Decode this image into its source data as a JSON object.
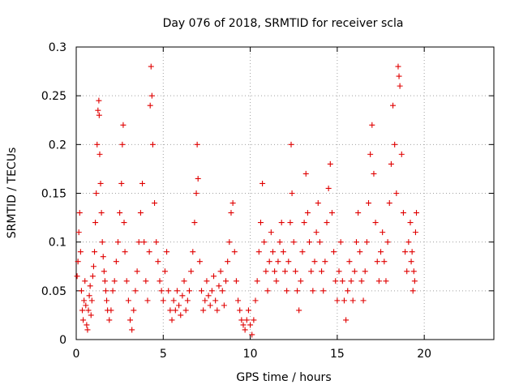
{
  "chart_data": {
    "type": "scatter",
    "title": "Day 076 of 2018, SRMTID for receiver scla",
    "xlabel": "GPS time / hours",
    "ylabel": "SRMTID / TECUs",
    "xlim": [
      0,
      24
    ],
    "ylim": [
      0,
      0.3
    ],
    "xticks": [
      0,
      5,
      10,
      15,
      20
    ],
    "xtick_labels": [
      "0",
      "5",
      "10",
      "15",
      "20"
    ],
    "yticks": [
      0,
      0.05,
      0.1,
      0.15,
      0.2,
      0.25,
      0.3
    ],
    "ytick_labels": [
      "0",
      "0.05",
      "0.1",
      "0.15",
      "0.2",
      "0.25",
      "0.3"
    ],
    "grid": true,
    "marker": "plus",
    "color": "#e00000",
    "series": [
      {
        "name": "SRMTID",
        "points": [
          [
            0.05,
            0.065
          ],
          [
            0.1,
            0.08
          ],
          [
            0.15,
            0.11
          ],
          [
            0.2,
            0.13
          ],
          [
            0.25,
            0.09
          ],
          [
            0.3,
            0.05
          ],
          [
            0.35,
            0.03
          ],
          [
            0.4,
            0.02
          ],
          [
            0.45,
            0.04
          ],
          [
            0.5,
            0.06
          ],
          [
            0.55,
            0.035
          ],
          [
            0.6,
            0.015
          ],
          [
            0.65,
            0.01
          ],
          [
            0.7,
            0.03
          ],
          [
            0.75,
            0.045
          ],
          [
            0.8,
            0.055
          ],
          [
            0.85,
            0.025
          ],
          [
            0.9,
            0.04
          ],
          [
            0.95,
            0.065
          ],
          [
            1.0,
            0.075
          ],
          [
            1.05,
            0.09
          ],
          [
            1.1,
            0.12
          ],
          [
            1.15,
            0.15
          ],
          [
            1.2,
            0.2
          ],
          [
            1.25,
            0.235
          ],
          [
            1.3,
            0.245
          ],
          [
            1.32,
            0.23
          ],
          [
            1.35,
            0.19
          ],
          [
            1.4,
            0.16
          ],
          [
            1.45,
            0.13
          ],
          [
            1.5,
            0.1
          ],
          [
            1.55,
            0.085
          ],
          [
            1.6,
            0.07
          ],
          [
            1.65,
            0.06
          ],
          [
            1.7,
            0.05
          ],
          [
            1.75,
            0.04
          ],
          [
            1.8,
            0.03
          ],
          [
            1.9,
            0.02
          ],
          [
            2.0,
            0.03
          ],
          [
            2.1,
            0.05
          ],
          [
            2.2,
            0.06
          ],
          [
            2.3,
            0.08
          ],
          [
            2.4,
            0.1
          ],
          [
            2.5,
            0.13
          ],
          [
            2.6,
            0.16
          ],
          [
            2.65,
            0.2
          ],
          [
            2.7,
            0.22
          ],
          [
            2.75,
            0.12
          ],
          [
            2.8,
            0.09
          ],
          [
            2.9,
            0.06
          ],
          [
            3.0,
            0.04
          ],
          [
            3.1,
            0.02
          ],
          [
            3.2,
            0.01
          ],
          [
            3.3,
            0.03
          ],
          [
            3.4,
            0.05
          ],
          [
            3.5,
            0.07
          ],
          [
            3.6,
            0.1
          ],
          [
            3.7,
            0.13
          ],
          [
            3.8,
            0.16
          ],
          [
            3.9,
            0.1
          ],
          [
            4.0,
            0.06
          ],
          [
            4.1,
            0.04
          ],
          [
            4.2,
            0.09
          ],
          [
            4.25,
            0.24
          ],
          [
            4.3,
            0.28
          ],
          [
            4.35,
            0.25
          ],
          [
            4.4,
            0.2
          ],
          [
            4.5,
            0.14
          ],
          [
            4.6,
            0.1
          ],
          [
            4.7,
            0.08
          ],
          [
            4.8,
            0.06
          ],
          [
            4.9,
            0.05
          ],
          [
            5.0,
            0.04
          ],
          [
            5.1,
            0.07
          ],
          [
            5.2,
            0.09
          ],
          [
            5.3,
            0.05
          ],
          [
            5.4,
            0.03
          ],
          [
            5.5,
            0.02
          ],
          [
            5.6,
            0.04
          ],
          [
            5.7,
            0.03
          ],
          [
            5.8,
            0.05
          ],
          [
            5.9,
            0.035
          ],
          [
            6.0,
            0.025
          ],
          [
            6.1,
            0.045
          ],
          [
            6.2,
            0.06
          ],
          [
            6.3,
            0.03
          ],
          [
            6.4,
            0.04
          ],
          [
            6.5,
            0.05
          ],
          [
            6.6,
            0.07
          ],
          [
            6.7,
            0.09
          ],
          [
            6.8,
            0.12
          ],
          [
            6.9,
            0.15
          ],
          [
            6.95,
            0.2
          ],
          [
            7.0,
            0.165
          ],
          [
            7.1,
            0.08
          ],
          [
            7.2,
            0.05
          ],
          [
            7.3,
            0.03
          ],
          [
            7.4,
            0.04
          ],
          [
            7.5,
            0.06
          ],
          [
            7.6,
            0.045
          ],
          [
            7.7,
            0.035
          ],
          [
            7.8,
            0.05
          ],
          [
            7.9,
            0.065
          ],
          [
            8.0,
            0.04
          ],
          [
            8.1,
            0.03
          ],
          [
            8.2,
            0.055
          ],
          [
            8.3,
            0.07
          ],
          [
            8.4,
            0.05
          ],
          [
            8.5,
            0.035
          ],
          [
            8.6,
            0.06
          ],
          [
            8.7,
            0.08
          ],
          [
            8.8,
            0.1
          ],
          [
            8.9,
            0.13
          ],
          [
            9.0,
            0.14
          ],
          [
            9.1,
            0.09
          ],
          [
            9.2,
            0.06
          ],
          [
            9.3,
            0.04
          ],
          [
            9.4,
            0.03
          ],
          [
            9.5,
            0.02
          ],
          [
            9.6,
            0.015
          ],
          [
            9.7,
            0.01
          ],
          [
            9.8,
            0.02
          ],
          [
            9.9,
            0.03
          ],
          [
            10.0,
            0.015
          ],
          [
            10.1,
            0.005
          ],
          [
            10.2,
            0.02
          ],
          [
            10.3,
            0.04
          ],
          [
            10.4,
            0.06
          ],
          [
            10.5,
            0.09
          ],
          [
            10.6,
            0.12
          ],
          [
            10.7,
            0.16
          ],
          [
            10.8,
            0.1
          ],
          [
            10.9,
            0.07
          ],
          [
            11.0,
            0.05
          ],
          [
            11.1,
            0.08
          ],
          [
            11.2,
            0.11
          ],
          [
            11.3,
            0.09
          ],
          [
            11.4,
            0.07
          ],
          [
            11.5,
            0.06
          ],
          [
            11.6,
            0.08
          ],
          [
            11.7,
            0.1
          ],
          [
            11.8,
            0.12
          ],
          [
            11.9,
            0.09
          ],
          [
            12.0,
            0.07
          ],
          [
            12.1,
            0.05
          ],
          [
            12.2,
            0.08
          ],
          [
            12.3,
            0.12
          ],
          [
            12.35,
            0.2
          ],
          [
            12.4,
            0.15
          ],
          [
            12.5,
            0.1
          ],
          [
            12.6,
            0.07
          ],
          [
            12.7,
            0.05
          ],
          [
            12.8,
            0.03
          ],
          [
            12.9,
            0.06
          ],
          [
            13.0,
            0.09
          ],
          [
            13.1,
            0.12
          ],
          [
            13.2,
            0.17
          ],
          [
            13.3,
            0.13
          ],
          [
            13.4,
            0.1
          ],
          [
            13.5,
            0.07
          ],
          [
            13.6,
            0.05
          ],
          [
            13.7,
            0.08
          ],
          [
            13.8,
            0.11
          ],
          [
            13.9,
            0.14
          ],
          [
            14.0,
            0.1
          ],
          [
            14.1,
            0.07
          ],
          [
            14.2,
            0.05
          ],
          [
            14.3,
            0.08
          ],
          [
            14.4,
            0.12
          ],
          [
            14.5,
            0.155
          ],
          [
            14.6,
            0.18
          ],
          [
            14.7,
            0.13
          ],
          [
            14.8,
            0.09
          ],
          [
            14.9,
            0.06
          ],
          [
            15.0,
            0.04
          ],
          [
            15.1,
            0.07
          ],
          [
            15.2,
            0.1
          ],
          [
            15.3,
            0.06
          ],
          [
            15.4,
            0.04
          ],
          [
            15.5,
            0.02
          ],
          [
            15.6,
            0.05
          ],
          [
            15.7,
            0.08
          ],
          [
            15.8,
            0.06
          ],
          [
            15.9,
            0.04
          ],
          [
            16.0,
            0.07
          ],
          [
            16.1,
            0.1
          ],
          [
            16.2,
            0.13
          ],
          [
            16.3,
            0.09
          ],
          [
            16.4,
            0.06
          ],
          [
            16.5,
            0.04
          ],
          [
            16.6,
            0.07
          ],
          [
            16.7,
            0.1
          ],
          [
            16.8,
            0.14
          ],
          [
            16.9,
            0.19
          ],
          [
            17.0,
            0.22
          ],
          [
            17.1,
            0.17
          ],
          [
            17.2,
            0.12
          ],
          [
            17.3,
            0.08
          ],
          [
            17.4,
            0.06
          ],
          [
            17.5,
            0.09
          ],
          [
            17.6,
            0.11
          ],
          [
            17.7,
            0.08
          ],
          [
            17.8,
            0.06
          ],
          [
            17.9,
            0.1
          ],
          [
            18.0,
            0.14
          ],
          [
            18.1,
            0.18
          ],
          [
            18.2,
            0.24
          ],
          [
            18.3,
            0.2
          ],
          [
            18.4,
            0.15
          ],
          [
            18.5,
            0.28
          ],
          [
            18.55,
            0.27
          ],
          [
            18.6,
            0.26
          ],
          [
            18.7,
            0.19
          ],
          [
            18.8,
            0.13
          ],
          [
            18.9,
            0.09
          ],
          [
            19.0,
            0.07
          ],
          [
            19.1,
            0.1
          ],
          [
            19.2,
            0.12
          ],
          [
            19.3,
            0.09
          ],
          [
            19.4,
            0.07
          ],
          [
            19.5,
            0.11
          ],
          [
            19.55,
            0.13
          ],
          [
            19.45,
            0.06
          ],
          [
            19.35,
            0.05
          ],
          [
            19.25,
            0.08
          ]
        ]
      }
    ]
  }
}
